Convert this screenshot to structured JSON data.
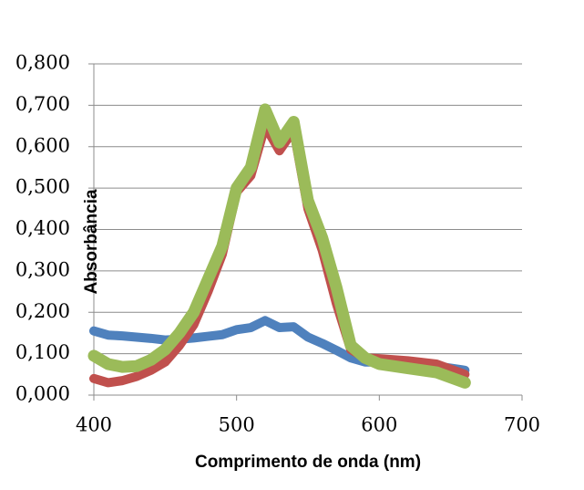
{
  "chart_data": {
    "type": "line",
    "x_label": "Comprimento de onda (nm)",
    "y_label": "Absorbância",
    "x": [
      400,
      410,
      420,
      430,
      440,
      450,
      460,
      470,
      480,
      490,
      500,
      510,
      520,
      530,
      540,
      550,
      560,
      570,
      580,
      590,
      600,
      620,
      640,
      660
    ],
    "series": [
      {
        "color": "#4f81bd",
        "values": [
          0.155,
          0.145,
          0.143,
          0.14,
          0.137,
          0.133,
          0.135,
          0.138,
          0.142,
          0.146,
          0.158,
          0.163,
          0.18,
          0.163,
          0.165,
          0.14,
          0.125,
          0.108,
          0.09,
          0.08,
          0.08,
          0.075,
          0.07,
          0.06
        ]
      },
      {
        "color": "#c0504d",
        "values": [
          0.04,
          0.03,
          0.035,
          0.045,
          0.06,
          0.08,
          0.12,
          0.17,
          0.25,
          0.34,
          0.49,
          0.53,
          0.65,
          0.59,
          0.64,
          0.45,
          0.35,
          0.22,
          0.11,
          0.09,
          0.088,
          0.083,
          0.075,
          0.05
        ]
      },
      {
        "color": "#9bbb59",
        "values": [
          0.095,
          0.075,
          0.068,
          0.07,
          0.085,
          0.11,
          0.15,
          0.2,
          0.28,
          0.36,
          0.5,
          0.55,
          0.69,
          0.61,
          0.66,
          0.47,
          0.38,
          0.26,
          0.12,
          0.09,
          0.075,
          0.065,
          0.055,
          0.03
        ]
      }
    ],
    "xlim": [
      400,
      700
    ],
    "xticks": [
      400,
      500,
      600,
      700
    ],
    "ylim": [
      0,
      0.8
    ],
    "yticks": [
      {
        "value": 0,
        "label": "0,000"
      },
      {
        "value": 0.1,
        "label": "0,100"
      },
      {
        "value": 0.2,
        "label": "0,200"
      },
      {
        "value": 0.3,
        "label": "0,300"
      },
      {
        "value": 0.4,
        "label": "0,400"
      },
      {
        "value": 0.5,
        "label": "0,500"
      },
      {
        "value": 0.6,
        "label": "0,600"
      },
      {
        "value": 0.7,
        "label": "0,700"
      },
      {
        "value": 0.8,
        "label": "0,800"
      }
    ],
    "grid": true
  }
}
